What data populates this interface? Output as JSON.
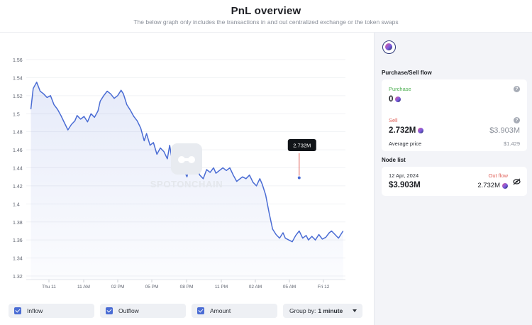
{
  "header": {
    "title": "PnL overview",
    "subtitle": "The below graph only includes the transactions in and out centralized exchange or the token swaps"
  },
  "watermark": "SPOTONCHAIN",
  "controls": {
    "inflow": "Inflow",
    "outflow": "Outflow",
    "amount": "Amount",
    "group_by_label": "Group by:",
    "group_by_value": "1 minute"
  },
  "panel": {
    "flow_title": "Purchase/Sell flow",
    "purchase_label": "Purchase",
    "purchase_value": "0",
    "sell_label": "Sell",
    "sell_value": "2.732M",
    "sell_usd": "$3.903M",
    "avg_label": "Average price",
    "avg_value": "$1.429",
    "node_title": "Node list",
    "node": {
      "date": "12 Apr, 2024",
      "flow": "Out flow",
      "usd": "$3.903M",
      "amount": "2.732M"
    }
  },
  "colors": {
    "line": "#4a6cd4",
    "area": "#eef1fc",
    "marker": "#e0625a",
    "purchase": "#4caf50",
    "sell": "#e0625a"
  },
  "chart_data": {
    "type": "area",
    "x_ticks": [
      "Thu 11",
      "11 AM",
      "02 PM",
      "05 PM",
      "08 PM",
      "11 PM",
      "02 AM",
      "05 AM",
      "Fri 12"
    ],
    "y_ticks": [
      1.32,
      1.34,
      1.36,
      1.38,
      1.4,
      1.42,
      1.44,
      1.46,
      1.48,
      1.5,
      1.52,
      1.54,
      1.56
    ],
    "ylim": [
      1.32,
      1.56
    ],
    "x_range_hours": [
      -0.4,
      27.2
    ],
    "x": [
      0,
      0.2,
      0.5,
      0.8,
      1.1,
      1.4,
      1.7,
      2.0,
      2.3,
      2.6,
      2.9,
      3.2,
      3.5,
      3.8,
      4.0,
      4.3,
      4.6,
      4.9,
      5.2,
      5.5,
      5.8,
      6.0,
      6.3,
      6.6,
      6.9,
      7.2,
      7.5,
      7.8,
      8.0,
      8.3,
      8.6,
      8.9,
      9.2,
      9.5,
      9.8,
      10.0,
      10.3,
      10.6,
      10.9,
      11.2,
      11.5,
      11.8,
      12.0,
      12.3,
      12.6,
      12.9,
      13.2,
      13.5,
      13.8,
      14.0,
      14.3,
      14.6,
      14.9,
      15.2,
      15.5,
      15.8,
      16.0,
      16.3,
      16.6,
      16.9,
      17.2,
      17.5,
      17.8,
      18.0,
      18.3,
      18.6,
      18.9,
      19.2,
      19.5,
      19.8,
      20.0,
      20.3,
      20.6,
      20.9,
      21.2,
      21.5,
      21.8,
      22.0,
      22.3,
      22.6,
      22.9,
      23.2,
      23.5,
      23.8,
      24.0,
      24.3,
      24.6,
      24.9,
      25.2,
      25.5,
      25.8,
      26.0,
      26.3,
      26.6,
      26.9,
      27.0
    ],
    "y": [
      1.505,
      1.528,
      1.535,
      1.525,
      1.522,
      1.518,
      1.52,
      1.51,
      1.505,
      1.498,
      1.49,
      1.482,
      1.488,
      1.492,
      1.498,
      1.494,
      1.497,
      1.491,
      1.5,
      1.496,
      1.503,
      1.514,
      1.52,
      1.525,
      1.522,
      1.517,
      1.52,
      1.526,
      1.522,
      1.51,
      1.504,
      1.497,
      1.492,
      1.484,
      1.47,
      1.478,
      1.465,
      1.468,
      1.455,
      1.462,
      1.458,
      1.45,
      1.465,
      1.442,
      1.448,
      1.454,
      1.438,
      1.43,
      1.448,
      1.436,
      1.44,
      1.432,
      1.428,
      1.438,
      1.435,
      1.44,
      1.434,
      1.437,
      1.44,
      1.437,
      1.44,
      1.432,
      1.425,
      1.427,
      1.43,
      1.428,
      1.432,
      1.424,
      1.42,
      1.428,
      1.422,
      1.41,
      1.39,
      1.372,
      1.366,
      1.362,
      1.368,
      1.362,
      1.36,
      1.358,
      1.365,
      1.37,
      1.362,
      1.365,
      1.36,
      1.364,
      1.36,
      1.366,
      1.361,
      1.363,
      1.368,
      1.37,
      1.366,
      1.362,
      1.368,
      1.37
    ],
    "marker": {
      "x": 23.2,
      "y": 1.429,
      "label": "2.732M"
    }
  }
}
